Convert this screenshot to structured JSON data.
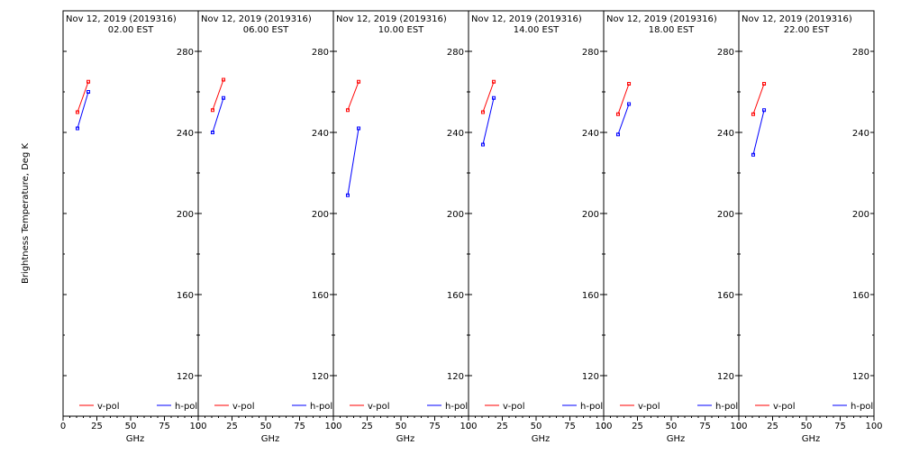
{
  "chart_data": [
    {
      "type": "line",
      "title": "Nov 12, 2019 (2019316)",
      "subtitle": "02.00 EST",
      "xlabel": "GHz",
      "ylabel": "Brightness Temperature, Deg K",
      "xlim": [
        0,
        100
      ],
      "ylim": [
        100,
        300
      ],
      "xticks": [
        0,
        25,
        50,
        75,
        100
      ],
      "yticks": [
        120,
        160,
        200,
        240,
        280
      ],
      "series": [
        {
          "name": "v-pol",
          "color": "#ff0000",
          "x": [
            10.65,
            18.7
          ],
          "y": [
            250,
            265
          ]
        },
        {
          "name": "h-pol",
          "color": "#0000ff",
          "x": [
            10.65,
            18.7
          ],
          "y": [
            242,
            260
          ]
        }
      ]
    },
    {
      "type": "line",
      "title": "Nov 12, 2019 (2019316)",
      "subtitle": "06.00 EST",
      "xlabel": "GHz",
      "ylabel": "",
      "xlim": [
        0,
        100
      ],
      "ylim": [
        100,
        300
      ],
      "xticks": [
        0,
        25,
        50,
        75,
        100
      ],
      "yticks": [
        120,
        160,
        200,
        240,
        280
      ],
      "series": [
        {
          "name": "v-pol",
          "color": "#ff0000",
          "x": [
            10.65,
            18.7
          ],
          "y": [
            251,
            266
          ]
        },
        {
          "name": "h-pol",
          "color": "#0000ff",
          "x": [
            10.65,
            18.7
          ],
          "y": [
            240,
            257
          ]
        }
      ]
    },
    {
      "type": "line",
      "title": "Nov 12, 2019 (2019316)",
      "subtitle": "10.00 EST",
      "xlabel": "GHz",
      "ylabel": "",
      "xlim": [
        0,
        100
      ],
      "ylim": [
        100,
        300
      ],
      "xticks": [
        0,
        25,
        50,
        75,
        100
      ],
      "yticks": [
        120,
        160,
        200,
        240,
        280
      ],
      "series": [
        {
          "name": "v-pol",
          "color": "#ff0000",
          "x": [
            10.65,
            18.7
          ],
          "y": [
            251,
            265
          ]
        },
        {
          "name": "h-pol",
          "color": "#0000ff",
          "x": [
            10.65,
            18.7
          ],
          "y": [
            209,
            242
          ]
        }
      ]
    },
    {
      "type": "line",
      "title": "Nov 12, 2019 (2019316)",
      "subtitle": "14.00 EST",
      "xlabel": "GHz",
      "ylabel": "",
      "xlim": [
        0,
        100
      ],
      "ylim": [
        100,
        300
      ],
      "xticks": [
        0,
        25,
        50,
        75,
        100
      ],
      "yticks": [
        120,
        160,
        200,
        240,
        280
      ],
      "series": [
        {
          "name": "v-pol",
          "color": "#ff0000",
          "x": [
            10.65,
            18.7
          ],
          "y": [
            250,
            265
          ]
        },
        {
          "name": "h-pol",
          "color": "#0000ff",
          "x": [
            10.65,
            18.7
          ],
          "y": [
            234,
            257
          ]
        }
      ]
    },
    {
      "type": "line",
      "title": "Nov 12, 2019 (2019316)",
      "subtitle": "18.00 EST",
      "xlabel": "GHz",
      "ylabel": "",
      "xlim": [
        0,
        100
      ],
      "ylim": [
        100,
        300
      ],
      "xticks": [
        0,
        25,
        50,
        75,
        100
      ],
      "yticks": [
        120,
        160,
        200,
        240,
        280
      ],
      "series": [
        {
          "name": "v-pol",
          "color": "#ff0000",
          "x": [
            10.65,
            18.7
          ],
          "y": [
            249,
            264
          ]
        },
        {
          "name": "h-pol",
          "color": "#0000ff",
          "x": [
            10.65,
            18.7
          ],
          "y": [
            239,
            254
          ]
        }
      ]
    },
    {
      "type": "line",
      "title": "Nov 12, 2019 (2019316)",
      "subtitle": "22.00 EST",
      "xlabel": "GHz",
      "ylabel": "",
      "xlim": [
        0,
        100
      ],
      "ylim": [
        100,
        300
      ],
      "xticks": [
        0,
        25,
        50,
        75,
        100
      ],
      "yticks": [
        120,
        160,
        200,
        240,
        280
      ],
      "series": [
        {
          "name": "v-pol",
          "color": "#ff0000",
          "x": [
            10.65,
            18.7
          ],
          "y": [
            249,
            264
          ]
        },
        {
          "name": "h-pol",
          "color": "#0000ff",
          "x": [
            10.65,
            18.7
          ],
          "y": [
            229,
            251
          ]
        }
      ]
    }
  ]
}
